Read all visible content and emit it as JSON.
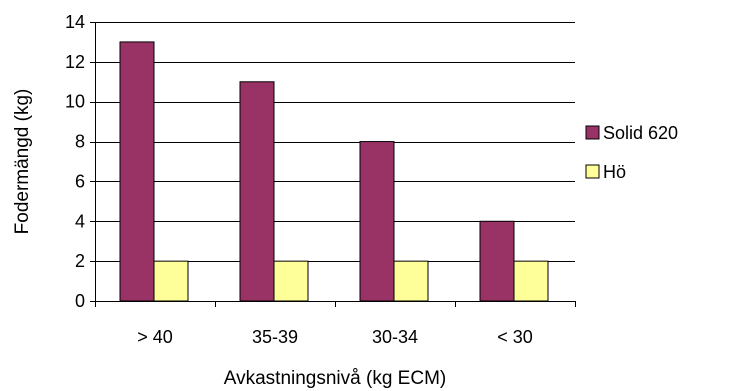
{
  "chart_data": {
    "type": "bar",
    "categories": [
      "> 40",
      "35-39",
      "30-34",
      "< 30"
    ],
    "series": [
      {
        "name": "Solid 620",
        "values": [
          13,
          11,
          8,
          4
        ],
        "color": "#993366"
      },
      {
        "name": "Hö",
        "values": [
          2,
          2,
          2,
          2
        ],
        "color": "#FFFF99"
      }
    ],
    "xlabel": "Avkastningsnivå (kg ECM)",
    "ylabel": "Fodermängd (kg)",
    "ylim": [
      0,
      14
    ],
    "yticks": [
      0,
      2,
      4,
      6,
      8,
      10,
      12,
      14
    ],
    "grid": true,
    "legend": "right"
  }
}
